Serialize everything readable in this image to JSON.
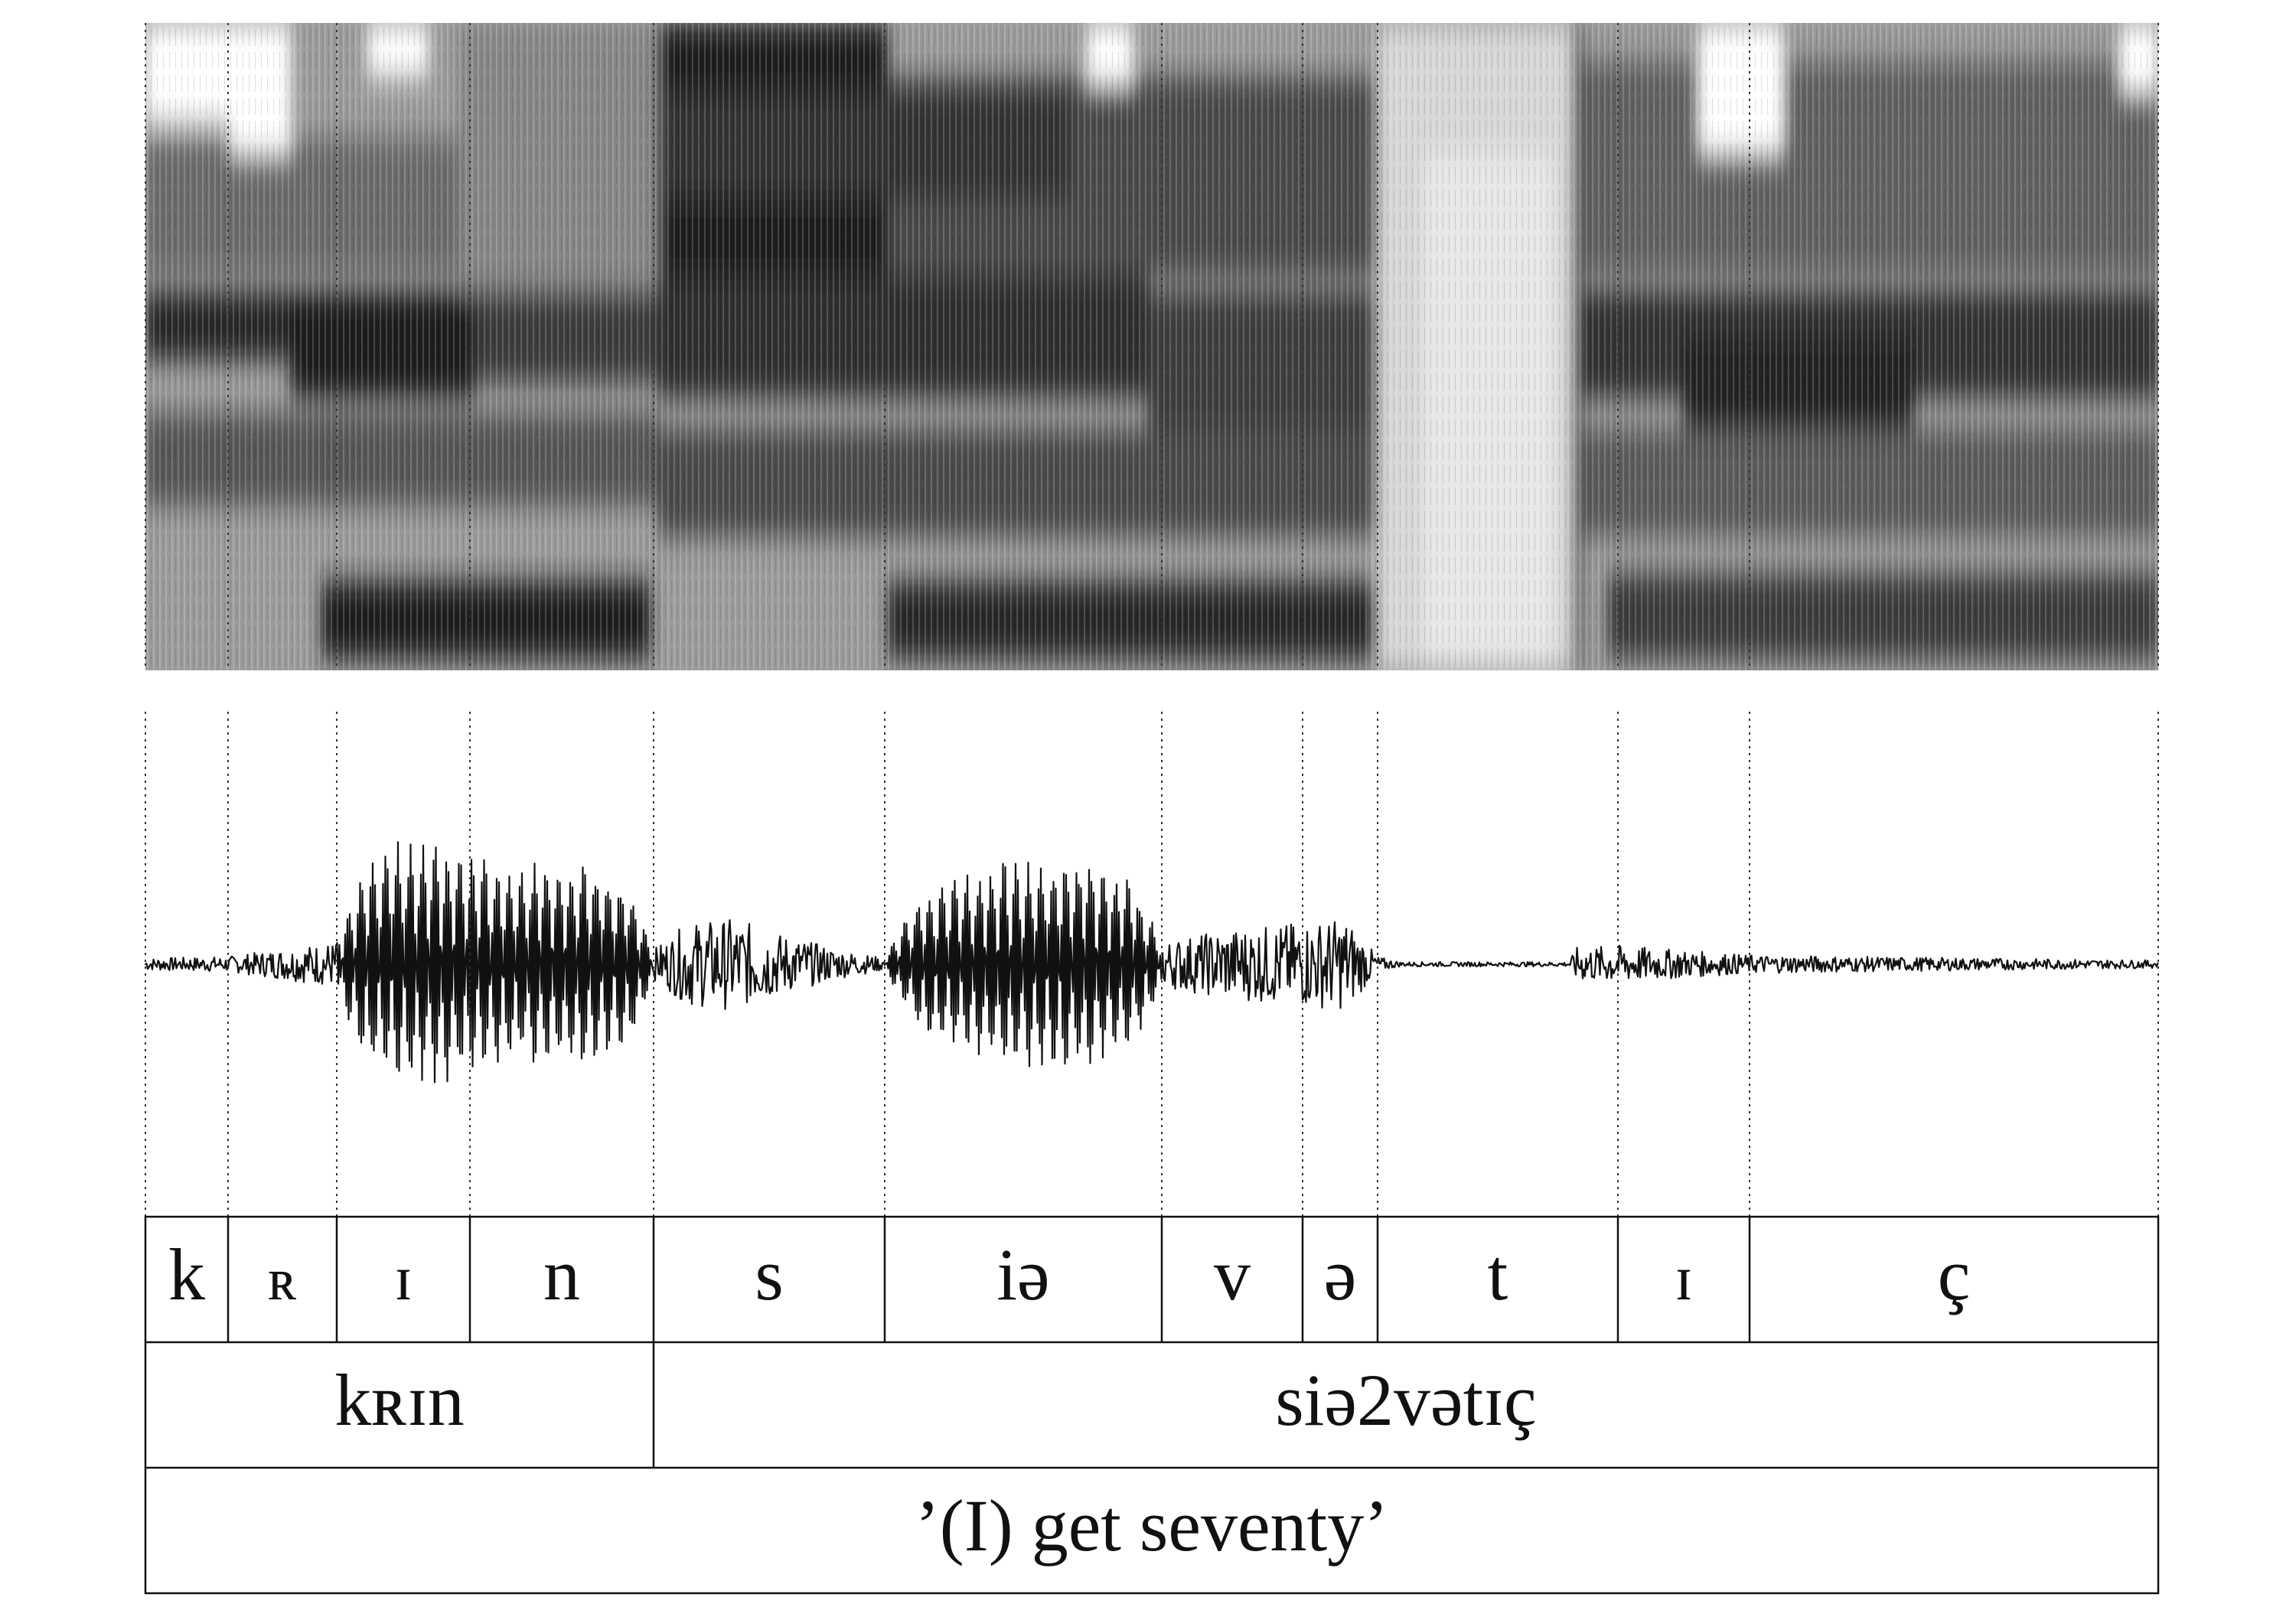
{
  "phones": [
    "k",
    "ʀ",
    "ɪ",
    "n",
    "s",
    "iə",
    "v",
    "ə",
    "t",
    "ɪ",
    "ç"
  ],
  "words": [
    "kʀɪn",
    "siə2vətɪç"
  ],
  "translation": "’(I) get seventy’",
  "colors": {
    "ink": "#111111",
    "boundary": "#333333"
  }
}
